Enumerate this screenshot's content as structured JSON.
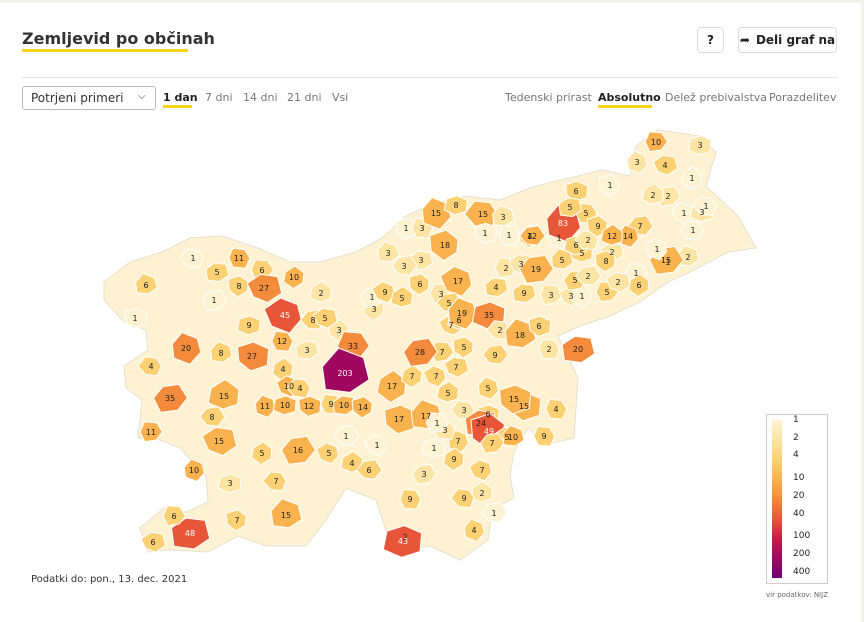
{
  "header": {
    "title": "Zemljevid po občinah",
    "help_label": "?",
    "share_label": "Deli graf na"
  },
  "controls": {
    "metric_select": "Potrjeni primeri",
    "period_tabs": [
      "1 dan",
      "7 dni",
      "14 dni",
      "21 dni",
      "Vsi"
    ],
    "period_active": "1 dan",
    "mode_tabs": [
      "Tedenski prirast",
      "Absolutno",
      "Delež prebivalstva",
      "Porazdelitev"
    ],
    "mode_active": "Absolutno"
  },
  "footer": {
    "date_text": "Podatki do: pon., 13. dec. 2021",
    "source_text": "vir podatkov: NIJZ"
  },
  "legend": {
    "labels": [
      "1",
      "2",
      "4",
      "10",
      "20",
      "40",
      "100",
      "200",
      "400"
    ],
    "colors": [
      "#fdf2d2",
      "#fce4a4",
      "#fbd174",
      "#f9b24d",
      "#f48a3c",
      "#e8563a",
      "#c71e4a",
      "#a0085f",
      "#6b0070"
    ]
  },
  "map_labels": [
    "1",
    "6",
    "1",
    "11",
    "5",
    "8",
    "6",
    "27",
    "10",
    "1",
    "45",
    "2",
    "8",
    "20",
    "9",
    "4",
    "8",
    "27",
    "12",
    "3",
    "3",
    "33",
    "5",
    "4",
    "35",
    "10",
    "15",
    "8",
    "11",
    "10",
    "4",
    "203",
    "12",
    "9",
    "10",
    "14",
    "11",
    "15",
    "5",
    "16",
    "5",
    "4",
    "6",
    "10",
    "3",
    "7",
    "15",
    "17",
    "9",
    "48",
    "7",
    "6",
    "6",
    "17",
    "3",
    "1",
    "2",
    "1",
    "7",
    "1",
    "3",
    "3",
    "1",
    "3",
    "3",
    "6",
    "3",
    "7",
    "3",
    "1",
    "9",
    "5",
    "3",
    "15",
    "8",
    "15",
    "3",
    "1",
    "1",
    "4",
    "18",
    "2",
    "3",
    "4",
    "19",
    "1",
    "5",
    "12",
    "83",
    "6",
    "2",
    "5",
    "6",
    "5",
    "5",
    "9",
    "3",
    "3",
    "1",
    "5",
    "17",
    "6",
    "5",
    "19",
    "35",
    "2",
    "18",
    "6",
    "2",
    "9",
    "5",
    "7",
    "7",
    "7",
    "28",
    "7",
    "5",
    "9",
    "5",
    "6",
    "3",
    "17",
    "15",
    "4",
    "24",
    "49",
    "1",
    "5",
    "9",
    "7",
    "7",
    "2",
    "1",
    "4",
    "43",
    "9",
    "10",
    "15",
    "9",
    "20",
    "1",
    "10",
    "4",
    "1",
    "2",
    "1",
    "2",
    "7",
    "14",
    "3",
    "1",
    "2",
    "1",
    "1",
    "2",
    "8",
    "5",
    "2",
    "6",
    "15",
    "1",
    "12",
    "2",
    "3",
    "3",
    "1",
    "3",
    "1"
  ]
}
